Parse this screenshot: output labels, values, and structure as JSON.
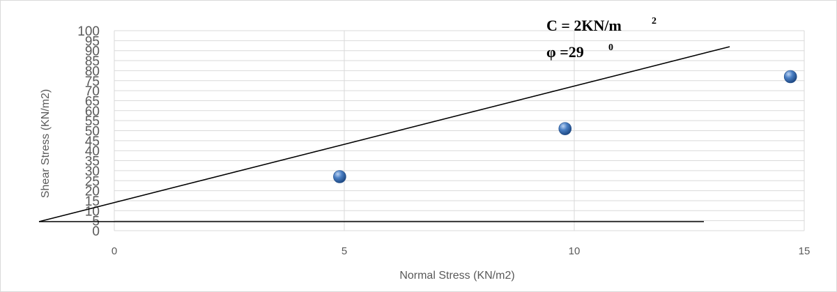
{
  "chart_data": {
    "type": "scatter",
    "xlabel": "Normal Stress (KN/m2)",
    "ylabel": "Shear Stress (KN/m2)",
    "xlim": [
      0,
      15
    ],
    "ylim": [
      0,
      100
    ],
    "x_ticks": [
      0,
      5,
      10,
      15
    ],
    "y_ticks": [
      0,
      5,
      10,
      15,
      20,
      25,
      30,
      35,
      40,
      45,
      50,
      55,
      60,
      65,
      70,
      75,
      80,
      85,
      90,
      95,
      100
    ],
    "grid": true,
    "marker_color": "#3a6fb5",
    "series": [
      {
        "x": [
          4.9,
          9.8,
          14.7
        ],
        "y": [
          27,
          51,
          77
        ]
      }
    ],
    "annotations": [
      {
        "text": "C  = 2KN/m",
        "sup": "2"
      },
      {
        "text": "φ  =29",
        "sup": "0"
      }
    ]
  }
}
